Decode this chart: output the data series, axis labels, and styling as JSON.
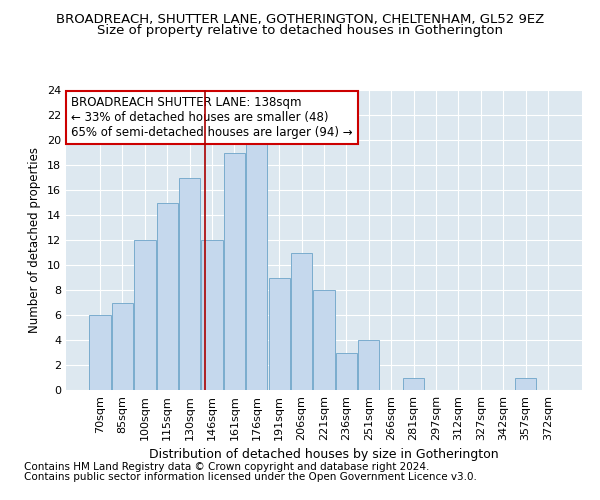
{
  "title1": "BROADREACH, SHUTTER LANE, GOTHERINGTON, CHELTENHAM, GL52 9EZ",
  "title2": "Size of property relative to detached houses in Gotherington",
  "xlabel": "Distribution of detached houses by size in Gotherington",
  "ylabel": "Number of detached properties",
  "categories": [
    "70sqm",
    "85sqm",
    "100sqm",
    "115sqm",
    "130sqm",
    "146sqm",
    "161sqm",
    "176sqm",
    "191sqm",
    "206sqm",
    "221sqm",
    "236sqm",
    "251sqm",
    "266sqm",
    "281sqm",
    "297sqm",
    "312sqm",
    "327sqm",
    "342sqm",
    "357sqm",
    "372sqm"
  ],
  "values": [
    6,
    7,
    12,
    15,
    17,
    12,
    19,
    20,
    9,
    11,
    8,
    3,
    4,
    0,
    1,
    0,
    0,
    0,
    0,
    1,
    0
  ],
  "bar_color": "#c5d8ed",
  "bar_edge_color": "#7aacce",
  "vline_x": 4.67,
  "vline_color": "#aa0000",
  "annotation_text": "BROADREACH SHUTTER LANE: 138sqm\n← 33% of detached houses are smaller (48)\n65% of semi-detached houses are larger (94) →",
  "annotation_box_color": "#ffffff",
  "annotation_box_edge": "#cc0000",
  "ylim": [
    0,
    24
  ],
  "yticks": [
    0,
    2,
    4,
    6,
    8,
    10,
    12,
    14,
    16,
    18,
    20,
    22,
    24
  ],
  "footer1": "Contains HM Land Registry data © Crown copyright and database right 2024.",
  "footer2": "Contains public sector information licensed under the Open Government Licence v3.0.",
  "fig_bg": "#ffffff",
  "axes_bg": "#dde8f0",
  "grid_color": "#ffffff",
  "title1_fontsize": 9.5,
  "title2_fontsize": 9.5,
  "xlabel_fontsize": 9,
  "ylabel_fontsize": 8.5,
  "tick_fontsize": 8,
  "annotation_fontsize": 8.5,
  "footer_fontsize": 7.5
}
